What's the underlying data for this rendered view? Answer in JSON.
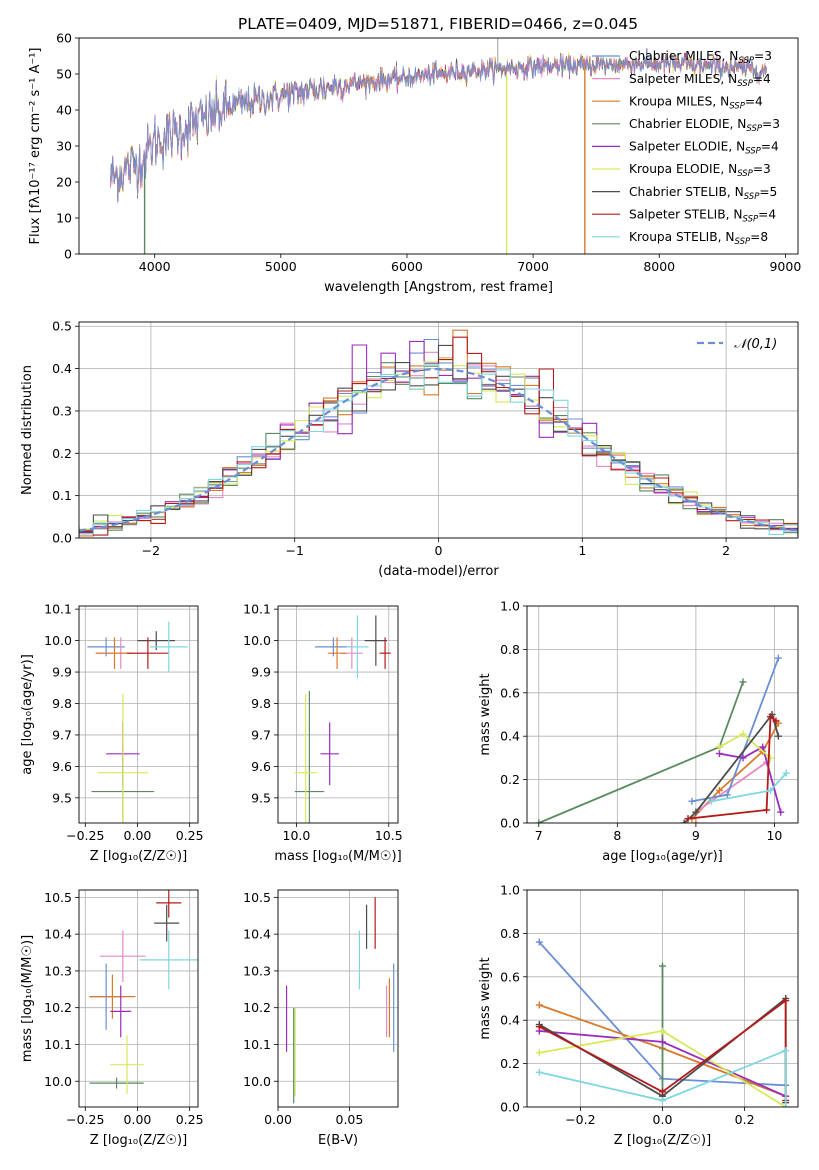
{
  "figure_title": "PLATE=0409, MJD=51871, FIBERID=0466, z=0.045",
  "models": [
    {
      "name": "Chabrier MILES",
      "nssp": "3",
      "color": "#6b8fd6"
    },
    {
      "name": "Salpeter MILES",
      "nssp": "4",
      "color": "#e78ac3"
    },
    {
      "name": "Kroupa MILES",
      "nssp": "4",
      "color": "#d97a2b"
    },
    {
      "name": "Chabrier ELODIE",
      "nssp": "3",
      "color": "#5b8a5e"
    },
    {
      "name": "Salpeter ELODIE",
      "nssp": "4",
      "color": "#9b2dbd"
    },
    {
      "name": "Kroupa ELODIE",
      "nssp": "3",
      "color": "#d9e85a"
    },
    {
      "name": "Chabrier STELIB",
      "nssp": "5",
      "color": "#4d4d4d"
    },
    {
      "name": "Salpeter STELIB",
      "nssp": "4",
      "color": "#b31b1b"
    },
    {
      "name": "Kroupa STELIB",
      "nssp": "8",
      "color": "#7fd7e0"
    }
  ],
  "chart_data": [
    {
      "id": "spectrum",
      "type": "line",
      "xlabel": "wavelength [Angstrom, rest frame]",
      "ylabel": "Flux [fλ10⁻¹⁷ erg cm⁻² s⁻¹ A⁻¹]",
      "xlim": [
        3400,
        9100
      ],
      "ylim": [
        0,
        60
      ],
      "xticks": [
        4000,
        5000,
        6000,
        7000,
        8000,
        9000
      ],
      "yticks": [
        0,
        10,
        20,
        30,
        40,
        50,
        60
      ],
      "x_range_data": [
        3650,
        8850
      ],
      "continuum_anchors": {
        "x": [
          3650,
          3900,
          4000,
          4300,
          4600,
          5000,
          5500,
          6000,
          6500,
          7000,
          7500,
          8000,
          8500,
          8850
        ],
        "y": [
          21,
          26,
          31,
          36,
          41,
          44,
          47,
          49,
          51,
          52,
          52.5,
          53,
          52,
          51
        ]
      },
      "dropouts": [
        {
          "x": 3920,
          "model": 3
        },
        {
          "x": 6790,
          "model": 5
        },
        {
          "x": 7410,
          "model": 2
        }
      ],
      "spike": {
        "x": 6720,
        "y": 60
      },
      "grid": false,
      "legend": "upper-right"
    },
    {
      "id": "residuals",
      "type": "histogram",
      "xlabel": "(data-model)/error",
      "ylabel": "Normed distribution",
      "xlim": [
        -2.5,
        2.5
      ],
      "ylim": [
        0,
        0.51
      ],
      "xticks": [
        -2,
        -1,
        0,
        1,
        2
      ],
      "yticks": [
        0.0,
        0.1,
        0.2,
        0.3,
        0.4,
        0.5
      ],
      "bin_width": 0.1,
      "reference": {
        "label": "𝒩(0,1)",
        "color": "#6a8fd4"
      },
      "grid": true,
      "legend": "upper-right"
    },
    {
      "id": "age_vs_Z",
      "type": "errorbar",
      "xlabel": "Z [log₁₀(Z/Z☉)]",
      "ylabel": "age  [log₁₀(age/yr)]",
      "xlim": [
        -0.28,
        0.29
      ],
      "ylim": [
        9.42,
        10.11
      ],
      "xticks": [
        -0.25,
        0.0,
        0.25
      ],
      "yticks": [
        9.5,
        9.6,
        9.7,
        9.8,
        9.9,
        10.0,
        10.1
      ],
      "points": [
        {
          "m": 0,
          "x": -0.15,
          "y": 9.98,
          "xerr": 0.09,
          "yerr": 0.03
        },
        {
          "m": 1,
          "x": -0.08,
          "y": 9.96,
          "xerr": 0.12,
          "yerr": 0.05
        },
        {
          "m": 2,
          "x": -0.11,
          "y": 9.96,
          "xerr": 0.09,
          "yerr": 0.05
        },
        {
          "m": 3,
          "x": -0.07,
          "y": 9.52,
          "xerr": 0.15,
          "yerr": 0.15
        },
        {
          "m": 4,
          "x": -0.07,
          "y": 9.64,
          "xerr": 0.08,
          "yerr": 0.1
        },
        {
          "m": 5,
          "x": -0.07,
          "y": 9.58,
          "xerr": 0.12,
          "yerr": 0.25
        },
        {
          "m": 6,
          "x": 0.09,
          "y": 10.0,
          "xerr": 0.09,
          "yerr": 0.03
        },
        {
          "m": 7,
          "x": 0.05,
          "y": 9.96,
          "xerr": 0.1,
          "yerr": 0.05
        },
        {
          "m": 8,
          "x": 0.15,
          "y": 9.98,
          "xerr": 0.09,
          "yerr": 0.08
        }
      ],
      "grid": true
    },
    {
      "id": "age_vs_mass",
      "type": "errorbar",
      "xlabel": "mass [log₁₀(M/M☉)]",
      "ylabel": "",
      "xlim": [
        9.9,
        10.55
      ],
      "ylim": [
        9.42,
        10.11
      ],
      "xticks": [
        10.0,
        10.5
      ],
      "yticks": [
        9.5,
        9.6,
        9.7,
        9.8,
        9.9,
        10.0,
        10.1
      ],
      "points": [
        {
          "m": 0,
          "x": 10.2,
          "y": 9.98,
          "xerr": 0.1,
          "yerr": 0.03
        },
        {
          "m": 1,
          "x": 10.3,
          "y": 9.96,
          "xerr": 0.06,
          "yerr": 0.05
        },
        {
          "m": 2,
          "x": 10.22,
          "y": 9.96,
          "xerr": 0.05,
          "yerr": 0.05
        },
        {
          "m": 3,
          "x": 10.07,
          "y": 9.52,
          "xerr": 0.08,
          "yerr": 0.32
        },
        {
          "m": 4,
          "x": 10.18,
          "y": 9.64,
          "xerr": 0.05,
          "yerr": 0.1
        },
        {
          "m": 5,
          "x": 10.05,
          "y": 9.58,
          "xerr": 0.06,
          "yerr": 0.25
        },
        {
          "m": 6,
          "x": 10.43,
          "y": 10.0,
          "xerr": 0.06,
          "yerr": 0.08
        },
        {
          "m": 7,
          "x": 10.48,
          "y": 9.96,
          "xerr": 0.03,
          "yerr": 0.05
        },
        {
          "m": 8,
          "x": 10.33,
          "y": 9.98,
          "xerr": 0.06,
          "yerr": 0.1
        }
      ],
      "grid": true
    },
    {
      "id": "weight_vs_age",
      "type": "line",
      "xlabel": "age  [log₁₀(age/yr)]",
      "ylabel": "mass weight",
      "xlim": [
        6.85,
        10.3
      ],
      "ylim": [
        0,
        1
      ],
      "xticks": [
        7,
        8,
        9,
        10
      ],
      "yticks": [
        0.0,
        0.2,
        0.4,
        0.6,
        0.8,
        1.0
      ],
      "series": [
        {
          "m": 0,
          "x": [
            8.95,
            9.4,
            10.05
          ],
          "y": [
            0.1,
            0.13,
            0.76
          ]
        },
        {
          "m": 2,
          "x": 9.0,
          "y": 0
        },
        {
          "m": 3,
          "x": [
            7.0,
            9.3,
            9.6
          ],
          "y": [
            0.0,
            0.35,
            0.65
          ]
        },
        {
          "m": 4,
          "x": [
            9.3,
            9.6,
            9.85,
            10.08
          ],
          "y": [
            0.32,
            0.3,
            0.35,
            0.05
          ]
        },
        {
          "m": 5,
          "x": [
            9.3,
            9.6,
            9.95
          ],
          "y": [
            0.35,
            0.41,
            0.3
          ]
        },
        {
          "m": 6,
          "x": [
            8.85,
            9.0,
            9.97,
            10.05
          ],
          "y": [
            0.0,
            0.05,
            0.5,
            0.4
          ]
        },
        {
          "m": 7,
          "x": [
            8.9,
            9.9,
            9.95,
            10.02
          ],
          "y": [
            0.02,
            0.06,
            0.49,
            0.47
          ]
        },
        {
          "m": 8,
          "x": [
            9.2,
            9.95,
            10.15
          ],
          "y": [
            0.1,
            0.15,
            0.23
          ]
        }
      ],
      "extra": [
        {
          "m": 2,
          "x": [
            8.95,
            9.3,
            9.85,
            10.05
          ],
          "y": [
            0.02,
            0.15,
            0.33,
            0.46
          ]
        },
        {
          "m": 1,
          "x": [
            9.0,
            9.9
          ],
          "y": [
            0.05,
            0.28
          ]
        }
      ],
      "grid": true
    },
    {
      "id": "mass_vs_Z",
      "type": "errorbar",
      "xlabel": "Z [log₁₀(Z/Z☉)]",
      "ylabel": "mass [log₁₀(M/M☉)]",
      "xlim": [
        -0.28,
        0.29
      ],
      "ylim": [
        9.93,
        10.52
      ],
      "xticks": [
        -0.25,
        0.0,
        0.25
      ],
      "yticks": [
        10.0,
        10.1,
        10.2,
        10.3,
        10.4,
        10.5
      ],
      "points": [
        {
          "m": 0,
          "x": -0.15,
          "y": 10.23,
          "xerr": 0.08,
          "yerr": 0.09
        },
        {
          "m": 1,
          "x": -0.07,
          "y": 10.34,
          "xerr": 0.11,
          "yerr": 0.07
        },
        {
          "m": 2,
          "x": -0.12,
          "y": 10.23,
          "xerr": 0.11,
          "yerr": 0.06
        },
        {
          "m": 3,
          "x": -0.1,
          "y": 9.995,
          "xerr": 0.13,
          "yerr": 0.015
        },
        {
          "m": 4,
          "x": -0.08,
          "y": 10.19,
          "xerr": 0.05,
          "yerr": 0.07
        },
        {
          "m": 5,
          "x": -0.05,
          "y": 10.045,
          "xerr": 0.08,
          "yerr": 0.08
        },
        {
          "m": 6,
          "x": 0.14,
          "y": 10.43,
          "xerr": 0.06,
          "yerr": 0.05
        },
        {
          "m": 7,
          "x": 0.15,
          "y": 10.485,
          "xerr": 0.06,
          "yerr": 0.04
        },
        {
          "m": 8,
          "x": 0.15,
          "y": 10.33,
          "xerr": 0.14,
          "yerr": 0.08
        }
      ],
      "grid": true
    },
    {
      "id": "mass_vs_ebv",
      "type": "errorbar",
      "xlabel": "E(B-V)",
      "ylabel": "",
      "xlim": [
        0.0,
        0.084
      ],
      "ylim": [
        9.93,
        10.52
      ],
      "xticks": [
        0.0,
        0.05
      ],
      "yticks": [
        10.0,
        10.1,
        10.2,
        10.3,
        10.4,
        10.5
      ],
      "points": [
        {
          "m": 0,
          "x": 0.081,
          "y": 10.2,
          "xerr": 0,
          "yerr": 0.12
        },
        {
          "m": 1,
          "x": 0.076,
          "y": 10.19,
          "xerr": 0,
          "yerr": 0.07
        },
        {
          "m": 2,
          "x": 0.078,
          "y": 10.2,
          "xerr": 0,
          "yerr": 0.08
        },
        {
          "m": 3,
          "x": 0.011,
          "y": 10.07,
          "xerr": 0,
          "yerr": 0.13
        },
        {
          "m": 4,
          "x": 0.006,
          "y": 10.17,
          "xerr": 0,
          "yerr": 0.09
        },
        {
          "m": 5,
          "x": 0.012,
          "y": 10.08,
          "xerr": 0,
          "yerr": 0.12
        },
        {
          "m": 6,
          "x": 0.062,
          "y": 10.42,
          "xerr": 0,
          "yerr": 0.06
        },
        {
          "m": 7,
          "x": 0.068,
          "y": 10.43,
          "xerr": 0,
          "yerr": 0.07
        },
        {
          "m": 8,
          "x": 0.057,
          "y": 10.33,
          "xerr": 0,
          "yerr": 0.08
        }
      ],
      "grid": true
    },
    {
      "id": "weight_vs_Z",
      "type": "line",
      "xlabel": "Z [log₁₀(Z/Z☉)]",
      "ylabel": "mass weight",
      "xlim": [
        -0.33,
        0.33
      ],
      "ylim": [
        0,
        1
      ],
      "xticks": [
        -0.2,
        0.0,
        0.2
      ],
      "yticks": [
        0.0,
        0.2,
        0.4,
        0.6,
        0.8,
        1.0
      ],
      "series": [
        {
          "m": 0,
          "x": [
            -0.3,
            0.0,
            0.3
          ],
          "y": [
            0.76,
            0.13,
            0.1
          ]
        },
        {
          "m": 2,
          "x": [
            -0.3,
            0.0,
            0.3
          ],
          "y": [
            0.47,
            0.27,
            0.05
          ]
        },
        {
          "m": 3,
          "x": [
            0.0,
            0.0
          ],
          "y": [
            0.65,
            0.05
          ]
        },
        {
          "m": 4,
          "x": [
            -0.3,
            0.0,
            0.3
          ],
          "y": [
            0.35,
            0.3,
            0.05
          ]
        },
        {
          "m": 5,
          "x": [
            -0.3,
            0.0,
            0.3
          ],
          "y": [
            0.25,
            0.35,
            0.0
          ]
        },
        {
          "m": 6,
          "x": [
            -0.3,
            0.0,
            0.3,
            0.3
          ],
          "y": [
            0.38,
            0.05,
            0.5,
            0.02
          ]
        },
        {
          "m": 7,
          "x": [
            -0.3,
            0.0,
            0.3,
            0.3
          ],
          "y": [
            0.37,
            0.07,
            0.49,
            0.03
          ]
        },
        {
          "m": 8,
          "x": [
            -0.3,
            0.0,
            0.3,
            0.3
          ],
          "y": [
            0.16,
            0.03,
            0.26,
            0.0
          ]
        }
      ],
      "grid": true
    }
  ]
}
